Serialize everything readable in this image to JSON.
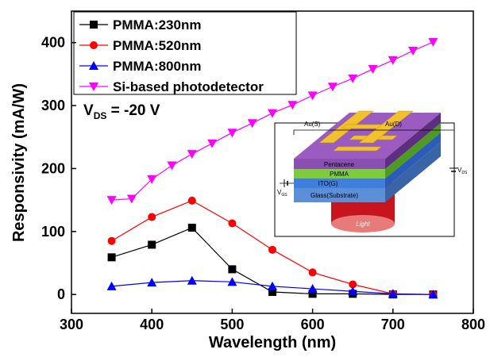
{
  "chart_data": {
    "type": "line",
    "xlabel": "Wavelength (nm)",
    "ylabel": "Responsivity (mA/W)",
    "annotation": {
      "main": "V",
      "sub": "DS",
      "rest": " = -20 V"
    },
    "xlim": [
      300,
      800
    ],
    "ylim": [
      -30,
      450
    ],
    "xticks": [
      300,
      400,
      500,
      600,
      700,
      800
    ],
    "yticks": [
      0,
      100,
      200,
      300,
      400
    ],
    "legend": "upper left",
    "series": [
      {
        "name": "PMMA:230nm",
        "color": "#000000",
        "marker": "square",
        "x": [
          350,
          400,
          450,
          500,
          550,
          600,
          650,
          700,
          750
        ],
        "values": [
          59,
          79,
          106,
          40,
          4,
          1,
          1,
          0,
          0
        ]
      },
      {
        "name": "PMMA:520nm",
        "color": "#ff0000",
        "marker": "circle",
        "x": [
          350,
          400,
          450,
          500,
          550,
          600,
          650,
          700,
          750
        ],
        "values": [
          85,
          123,
          149,
          113,
          71,
          35,
          16,
          1,
          0
        ]
      },
      {
        "name": "PMMA:800nm",
        "color": "#0000ff",
        "marker": "triangle-up",
        "x": [
          350,
          400,
          450,
          500,
          550,
          600,
          650,
          700,
          750
        ],
        "values": [
          13,
          19,
          22,
          20,
          13,
          9,
          5,
          1,
          0
        ]
      },
      {
        "name": "Si-based photodetector",
        "color": "#ff00ff",
        "marker": "triangle-down",
        "x": [
          350,
          375,
          400,
          425,
          450,
          475,
          500,
          525,
          550,
          575,
          600,
          625,
          650,
          675,
          700,
          725,
          750
        ],
        "values": [
          150,
          152,
          183,
          205,
          223,
          240,
          257,
          272,
          288,
          301,
          316,
          330,
          343,
          358,
          372,
          387,
          401
        ]
      }
    ]
  },
  "inset": {
    "source": "Au(S)",
    "drain": "Au(D)",
    "layers": [
      "Pentacene",
      "PMMA",
      "ITO(G)",
      "Glass(Substrate)"
    ],
    "light": "Light",
    "vgs": {
      "main": "V",
      "sub": "GS"
    },
    "vds": {
      "main": "V",
      "sub": "DS"
    }
  }
}
